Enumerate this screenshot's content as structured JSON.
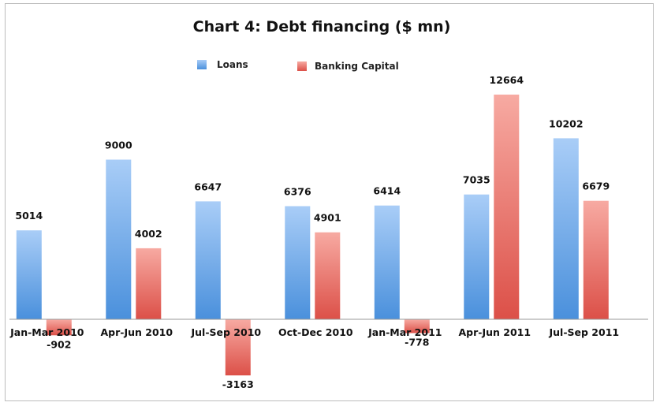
{
  "chart_data": {
    "type": "bar",
    "title": "Chart 4: Debt financing ($ mn)",
    "xlabel": "",
    "ylabel": "",
    "categories": [
      "Jan-Mar 2010",
      "Apr-Jun 2010",
      "Jul-Sep 2010",
      "Oct-Dec 2010",
      "Jan-Mar 2011",
      "Apr-Jun 2011",
      "Jul-Sep 2011"
    ],
    "series": [
      {
        "name": "Loans",
        "values": [
          5014,
          9000,
          6647,
          6376,
          6414,
          7035,
          10202
        ],
        "color": "#5b9ee0"
      },
      {
        "name": "Banking Capital",
        "values": [
          -902,
          4002,
          -3163,
          4901,
          -778,
          12664,
          6679
        ],
        "color": "#e46a62"
      }
    ],
    "ylim": [
      -3500,
      13500
    ],
    "grid": false,
    "legend": "top"
  }
}
